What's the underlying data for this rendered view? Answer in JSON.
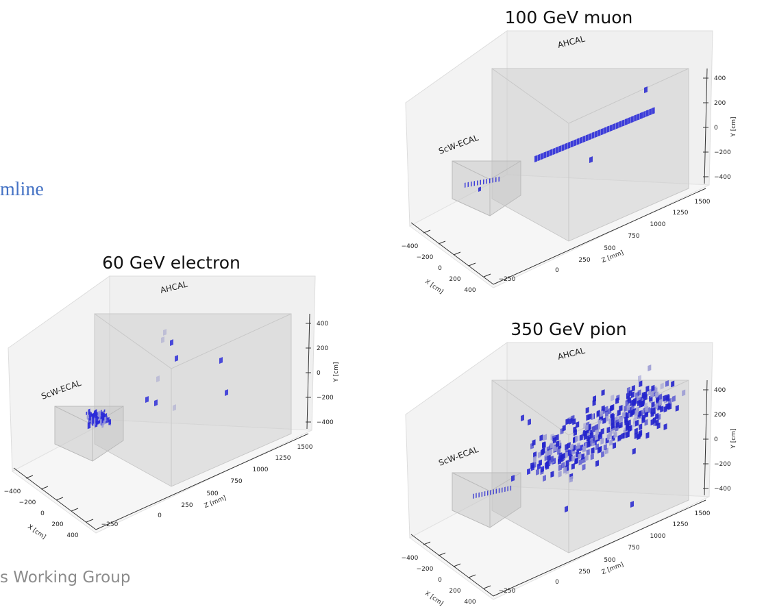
{
  "slide": {
    "heading_fragment": "mline",
    "footer_fragment": "s Working Group"
  },
  "panels": [
    {
      "title": "100 GeV muon",
      "ahcal_label": "AHCAL",
      "ecal_label": "ScW-ECAL",
      "y_axis": {
        "label": "Y [cm]",
        "ticks": [
          "400",
          "200",
          "0",
          "−200",
          "−400"
        ]
      },
      "z_axis": {
        "label": "Z [mm]",
        "ticks": [
          "−250",
          "0",
          "250",
          "500",
          "750",
          "1000",
          "1250",
          "1500"
        ]
      },
      "x_axis": {
        "label": "X [cm]",
        "ticks": [
          "−400",
          "−200",
          "0",
          "200",
          "400"
        ]
      }
    },
    {
      "title": "60 GeV electron",
      "ahcal_label": "AHCAL",
      "ecal_label": "ScW-ECAL",
      "y_axis": {
        "label": "Y [cm]",
        "ticks": [
          "400",
          "200",
          "0",
          "−200",
          "−400"
        ]
      },
      "z_axis": {
        "label": "Z [mm]",
        "ticks": [
          "−250",
          "0",
          "250",
          "500",
          "750",
          "1000",
          "1250",
          "1500"
        ]
      },
      "x_axis": {
        "label": "X [cm]",
        "ticks": [
          "−400",
          "−200",
          "0",
          "200",
          "400"
        ]
      }
    },
    {
      "title": "350 GeV pion",
      "ahcal_label": "AHCAL",
      "ecal_label": "ScW-ECAL",
      "y_axis": {
        "label": "Y [cm]",
        "ticks": [
          "400",
          "200",
          "0",
          "−200",
          "−400"
        ]
      },
      "z_axis": {
        "label": "Z [mm]",
        "ticks": [
          "−250",
          "0",
          "250",
          "500",
          "750",
          "1000",
          "1250",
          "1500"
        ]
      },
      "x_axis": {
        "label": "X [cm]",
        "ticks": [
          "−400",
          "−200",
          "0",
          "200",
          "400"
        ]
      }
    }
  ]
}
